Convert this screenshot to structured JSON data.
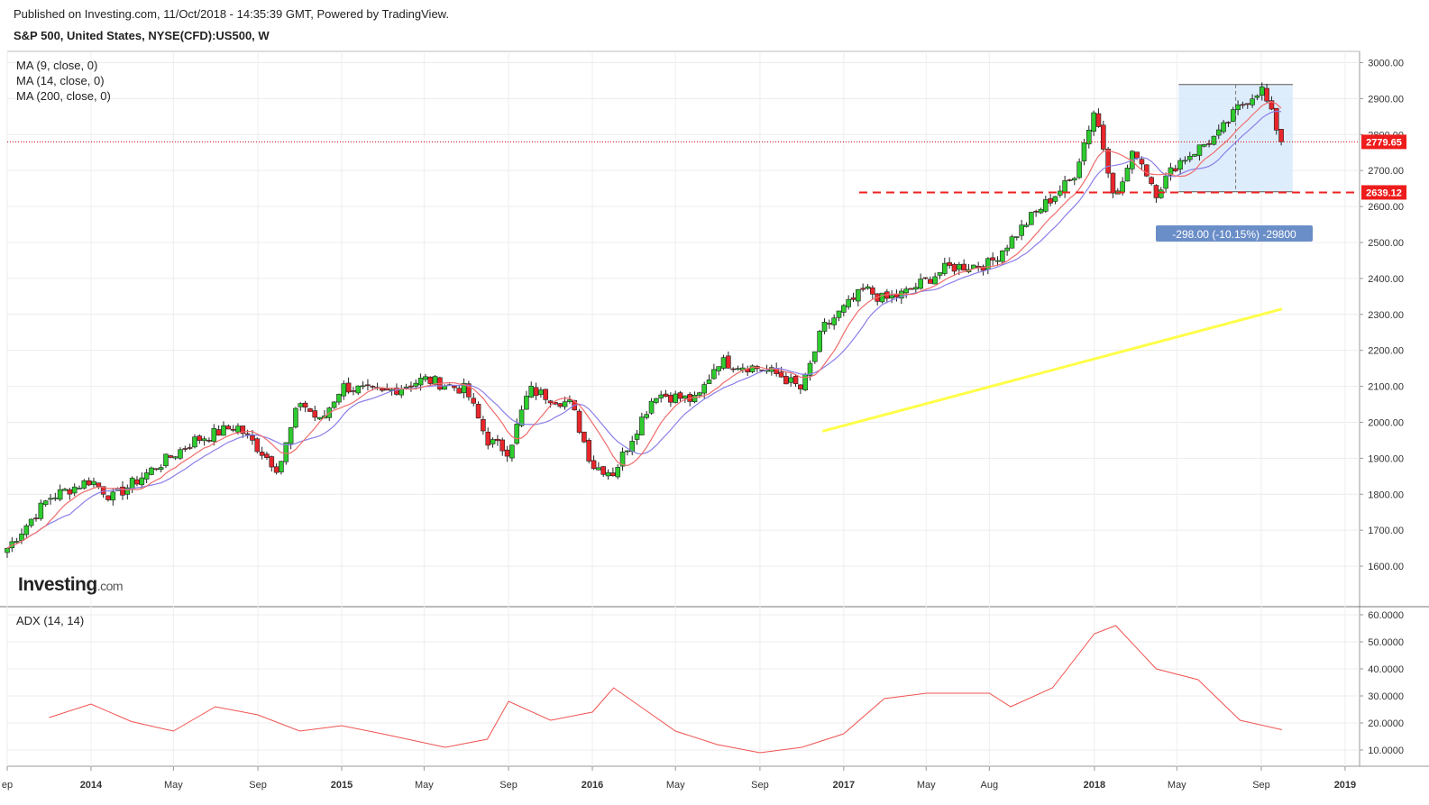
{
  "header": {
    "published": "Published on Investing.com, 11/Oct/2018 - 14:35:39 GMT, Powered by TradingView.",
    "symbol": "S&P 500, United States, NYSE(CFD):US500, W"
  },
  "indicators": {
    "ma9": "MA (9, close, 0)",
    "ma14": "MA (14, close, 0)",
    "ma200": "MA (200, close, 0)",
    "adx": "ADX (14, 14)"
  },
  "logo": {
    "brand": "Investing",
    "suffix": ".com"
  },
  "colors": {
    "up": "#2ecc2e",
    "down": "#e8262b",
    "ma9": "#f06c6c",
    "ma14": "#8a7fe8",
    "ma200": "#ffff4a",
    "adx": "#ef5350",
    "support": "#ee2222",
    "range_fill": "#d6e8fb",
    "measure_badge": "#6a8ec7"
  },
  "chart_data": [
    {
      "type": "candlestick",
      "interval": "W",
      "yticks": [
        1600,
        1700,
        1800,
        1900,
        2000,
        2100,
        2200,
        2300,
        2400,
        2500,
        2600,
        2700,
        2800,
        2900,
        3000
      ],
      "ylim": [
        1560,
        3050
      ],
      "price_labels": [
        {
          "value": 2779.65,
          "label": "2779.65"
        },
        {
          "value": 2639.12,
          "label": "2639.12"
        }
      ],
      "xticks": [
        {
          "label": "ep",
          "date": "2013-09"
        },
        {
          "label": "2014",
          "date": "2014-01"
        },
        {
          "label": "May",
          "date": "2014-05"
        },
        {
          "label": "Sep",
          "date": "2014-09"
        },
        {
          "label": "2015",
          "date": "2015-01"
        },
        {
          "label": "May",
          "date": "2015-05"
        },
        {
          "label": "Sep",
          "date": "2015-09"
        },
        {
          "label": "2016",
          "date": "2016-01"
        },
        {
          "label": "May",
          "date": "2016-05"
        },
        {
          "label": "Sep",
          "date": "2016-09"
        },
        {
          "label": "2017",
          "date": "2017-01"
        },
        {
          "label": "May",
          "date": "2017-05"
        },
        {
          "label": "Aug",
          "date": "2017-08"
        },
        {
          "label": "2018",
          "date": "2018-01"
        },
        {
          "label": "May",
          "date": "2018-05"
        },
        {
          "label": "Sep",
          "date": "2018-09"
        },
        {
          "label": "2019",
          "date": "2019-01"
        }
      ],
      "close_path": [
        [
          "2013-09",
          1650
        ],
        [
          "2013-11",
          1790
        ],
        [
          "2014-01",
          1840
        ],
        [
          "2014-02",
          1790
        ],
        [
          "2014-04",
          1870
        ],
        [
          "2014-06",
          1950
        ],
        [
          "2014-08",
          1990
        ],
        [
          "2014-10",
          1870
        ],
        [
          "2014-11",
          2060
        ],
        [
          "2014-12",
          2000
        ],
        [
          "2015-01",
          2100
        ],
        [
          "2015-03",
          2080
        ],
        [
          "2015-05",
          2120
        ],
        [
          "2015-07",
          2090
        ],
        [
          "2015-08",
          1950
        ],
        [
          "2015-09",
          1920
        ],
        [
          "2015-10",
          2090
        ],
        [
          "2015-12",
          2050
        ],
        [
          "2016-01",
          1880
        ],
        [
          "2016-02",
          1860
        ],
        [
          "2016-04",
          2080
        ],
        [
          "2016-06",
          2060
        ],
        [
          "2016-07",
          2170
        ],
        [
          "2016-09",
          2150
        ],
        [
          "2016-10",
          2130
        ],
        [
          "2016-11",
          2090
        ],
        [
          "2016-12",
          2260
        ],
        [
          "2017-02",
          2370
        ],
        [
          "2017-03",
          2340
        ],
        [
          "2017-04",
          2360
        ],
        [
          "2017-06",
          2430
        ],
        [
          "2017-08",
          2440
        ],
        [
          "2017-10",
          2570
        ],
        [
          "2017-12",
          2680
        ],
        [
          "2018-01",
          2870
        ],
        [
          "2018-02",
          2620
        ],
        [
          "2018-03",
          2760
        ],
        [
          "2018-04",
          2640
        ],
        [
          "2018-05",
          2720
        ],
        [
          "2018-07",
          2800
        ],
        [
          "2018-08",
          2880
        ],
        [
          "2018-09",
          2930
        ],
        [
          "2018-10",
          2780
        ]
      ],
      "ma200": [
        [
          "2016-12",
          1975
        ],
        [
          "2018-10",
          2315
        ]
      ],
      "support_level": 2639.12,
      "measurement": {
        "label": "-298.00 (-10.15%) -29800",
        "from_date": "2018-05",
        "to_date": "2018-10",
        "high": 2939,
        "low": 2641
      }
    },
    {
      "type": "line",
      "name": "ADX (14, 14)",
      "yticks": [
        10,
        20,
        30,
        40,
        50,
        60
      ],
      "ytick_labels": [
        "10.0000",
        "20.0000",
        "30.0000",
        "40.0000",
        "50.0000",
        "60.0000"
      ],
      "ylim": [
        7,
        61
      ],
      "series": [
        [
          "2013-11",
          22
        ],
        [
          "2014-01",
          27
        ],
        [
          "2014-03",
          20.5
        ],
        [
          "2014-05",
          17
        ],
        [
          "2014-07",
          26
        ],
        [
          "2014-09",
          23
        ],
        [
          "2014-11",
          17
        ],
        [
          "2015-01",
          19
        ],
        [
          "2015-03",
          16
        ],
        [
          "2015-06",
          11
        ],
        [
          "2015-08",
          14
        ],
        [
          "2015-09",
          28
        ],
        [
          "2015-11",
          21
        ],
        [
          "2016-01",
          24
        ],
        [
          "2016-02",
          33
        ],
        [
          "2016-05",
          17
        ],
        [
          "2016-07",
          12
        ],
        [
          "2016-09",
          9
        ],
        [
          "2016-11",
          11
        ],
        [
          "2017-01",
          16
        ],
        [
          "2017-03",
          29
        ],
        [
          "2017-05",
          31
        ],
        [
          "2017-08",
          31
        ],
        [
          "2017-09",
          26
        ],
        [
          "2017-11",
          33
        ],
        [
          "2018-01",
          53
        ],
        [
          "2018-02",
          56
        ],
        [
          "2018-04",
          40
        ],
        [
          "2018-06",
          36
        ],
        [
          "2018-08",
          21
        ],
        [
          "2018-10",
          17.5
        ]
      ]
    }
  ]
}
